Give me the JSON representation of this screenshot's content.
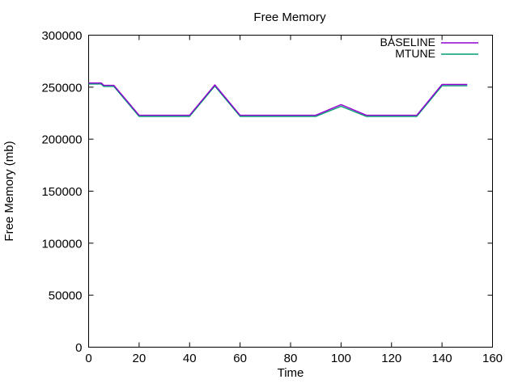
{
  "window": {
    "background_color": "#ffffff",
    "border_color": "#000000",
    "text_color": "#000000"
  },
  "chart_data": {
    "type": "line",
    "title": "Free Memory",
    "xlabel": "Time",
    "ylabel": "Free Memory (mb)",
    "xlim": [
      0,
      160
    ],
    "ylim": [
      0,
      300000
    ],
    "xticks": [
      0,
      20,
      40,
      60,
      80,
      100,
      120,
      140,
      160
    ],
    "yticks": [
      0,
      50000,
      100000,
      150000,
      200000,
      250000,
      300000
    ],
    "grid": false,
    "legend_position": "top-right-inside",
    "x": [
      0,
      5,
      6,
      10,
      20,
      30,
      40,
      50,
      60,
      70,
      80,
      90,
      100,
      110,
      120,
      130,
      140,
      150
    ],
    "series": [
      {
        "name": "MTUNE",
        "color": "#009e73",
        "values": [
          253000,
          253000,
          250700,
          250700,
          221900,
          221900,
          221900,
          251100,
          221900,
          221900,
          221900,
          221900,
          231600,
          221900,
          221900,
          221900,
          251400,
          251400
        ]
      },
      {
        "name": "BASELINE",
        "color": "#9400d3",
        "values": [
          254000,
          254000,
          251800,
          251800,
          223000,
          223000,
          223000,
          252200,
          223000,
          223000,
          223000,
          223000,
          233200,
          223000,
          223000,
          223000,
          252600,
          252600
        ]
      }
    ],
    "legend_order": [
      "BASELINE",
      "MTUNE"
    ]
  }
}
